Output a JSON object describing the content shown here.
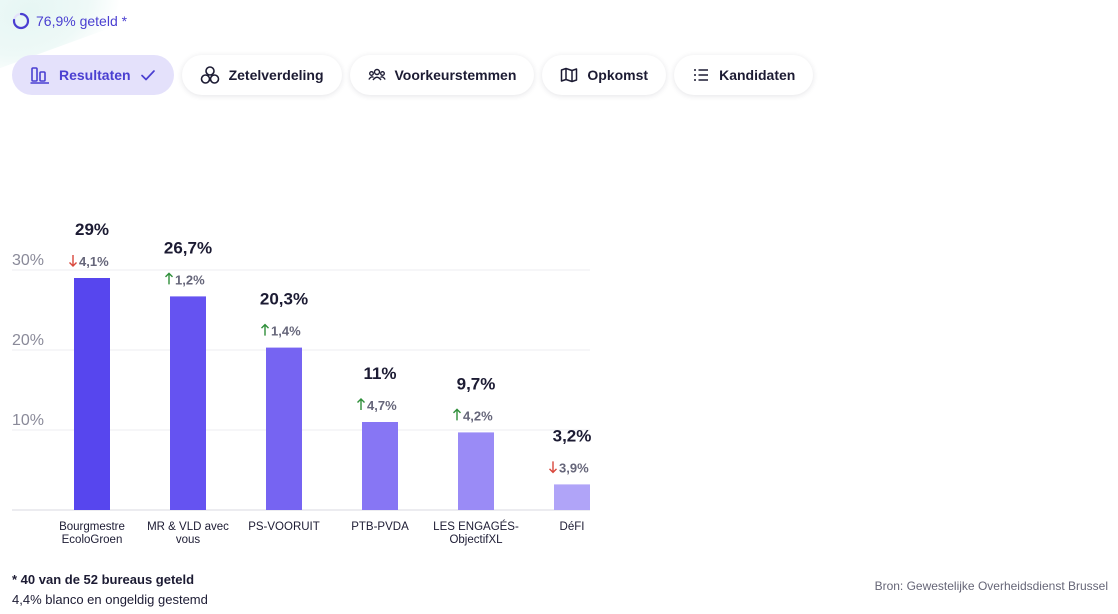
{
  "progress": {
    "label": "76,9% geteld *",
    "fraction": 0.769
  },
  "tabs": [
    {
      "label": "Resultaten",
      "icon": "bar-chart-icon",
      "active": true
    },
    {
      "label": "Zetelverdeling",
      "icon": "circles-icon",
      "active": false
    },
    {
      "label": "Voorkeurstemmen",
      "icon": "people-icon",
      "active": false
    },
    {
      "label": "Opkomst",
      "icon": "map-icon",
      "active": false
    },
    {
      "label": "Kandidaten",
      "icon": "list-icon",
      "active": false
    }
  ],
  "chart_data": {
    "type": "bar",
    "categories": [
      [
        "Bourgmestre",
        "EcoloGroen"
      ],
      [
        "MR & VLD avec",
        "vous"
      ],
      [
        "PS-VOORUIT"
      ],
      [
        "PTB-PVDA"
      ],
      [
        "LES ENGAGÉS-",
        "ObjectifXL"
      ],
      [
        "DéFI"
      ]
    ],
    "values": [
      29,
      26.7,
      20.3,
      11,
      9.7,
      3.2
    ],
    "value_labels": [
      "29%",
      "26,7%",
      "20,3%",
      "11%",
      "9,7%",
      "3,2%"
    ],
    "changes": [
      {
        "direction": "down",
        "label": "4,1%"
      },
      {
        "direction": "up",
        "label": "1,2%"
      },
      {
        "direction": "up",
        "label": "1,4%"
      },
      {
        "direction": "up",
        "label": "4,7%"
      },
      {
        "direction": "up",
        "label": "4,2%"
      },
      {
        "direction": "down",
        "label": "3,9%"
      }
    ],
    "yticks": [
      10,
      20,
      30
    ],
    "ytick_labels": [
      "10%",
      "20%",
      "30%"
    ],
    "ylim": [
      0,
      30
    ],
    "grid": true,
    "colors": [
      "#5746ee",
      "#6553f1",
      "#7664f2",
      "#8776f4",
      "#9a8bf6",
      "#b0a4f8"
    ],
    "up_color": "#2f8f3a",
    "down_color": "#d9473c"
  },
  "footer": {
    "note_bold": "* 40 van de 52 bureaus geteld",
    "note": "4,4% blanco en ongeldig gestemd",
    "source": "Bron: Gewestelijke Overheidsdienst Brussel"
  }
}
